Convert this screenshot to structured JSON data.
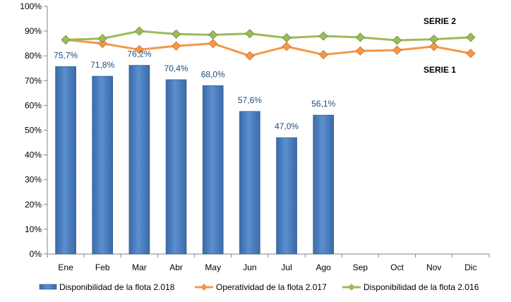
{
  "chart_data": {
    "type": "bar",
    "categories": [
      "Ene",
      "Feb",
      "Mar",
      "Abr",
      "May",
      "Jun",
      "Jul",
      "Ago",
      "Sep",
      "Oct",
      "Nov",
      "Dic"
    ],
    "ylim": [
      0,
      100
    ],
    "yticks": [
      0,
      10,
      20,
      30,
      40,
      50,
      60,
      70,
      80,
      90,
      100
    ],
    "ytick_suffix": "%",
    "grid": false,
    "legend_position": "bottom",
    "bar_series": {
      "name": "Disponibilidad de la flota 2.018",
      "color": "#4f81bd",
      "values": [
        75.7,
        71.8,
        76.2,
        70.4,
        68.0,
        57.6,
        47.0,
        56.1
      ],
      "data_labels": [
        "75,7%",
        "71,8%",
        "76,2%",
        "70,4%",
        "68,0%",
        "57,6%",
        "47,0%",
        "56,1%"
      ]
    },
    "line_series": [
      {
        "name": "Operatividad de la flota 2.017",
        "color": "#f79646",
        "marker_color": "#f79646",
        "values": [
          86.5,
          85.0,
          82.5,
          84.0,
          85.0,
          80.0,
          83.8,
          80.5,
          82.0,
          82.3,
          83.8,
          81.0
        ]
      },
      {
        "name": "Disponibilidad de la flota 2.016",
        "color": "#9bbb59",
        "marker_color": "#9bbb59",
        "values": [
          86.5,
          87.0,
          90.0,
          88.8,
          88.5,
          89.0,
          87.3,
          88.0,
          87.5,
          86.3,
          86.7,
          87.5
        ]
      }
    ],
    "annotations": [
      "SERIE 2",
      "SERIE 1"
    ]
  }
}
